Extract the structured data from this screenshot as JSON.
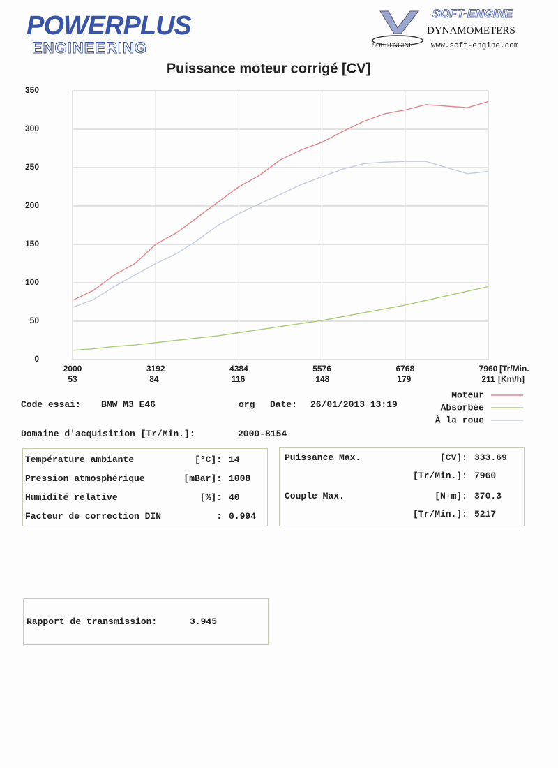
{
  "header": {
    "brand": "POWERPLUS",
    "brand_sub": "ENGINEERING",
    "partner": "SOFT-ENGINE",
    "partner_sub": "DYNAMOMETERS",
    "partner_url": "www.soft-engine.com",
    "partner_badge": "SOFT-ENGINE"
  },
  "chart_data": {
    "type": "line",
    "title": "Puissance moteur corrigé [CV]",
    "x": [
      2000,
      2298,
      2596,
      2894,
      3192,
      3490,
      3788,
      4086,
      4384,
      4682,
      4980,
      5278,
      5576,
      5874,
      6172,
      6470,
      6768,
      7066,
      7364,
      7662,
      7960
    ],
    "series": [
      {
        "name": "Moteur",
        "color": "#e08890",
        "values": [
          77,
          90,
          110,
          125,
          150,
          165,
          185,
          205,
          225,
          240,
          260,
          273,
          283,
          297,
          310,
          320,
          325,
          332,
          330,
          328,
          336
        ]
      },
      {
        "name": "Absorbée",
        "color": "#a8cc78",
        "values": [
          12,
          14,
          17,
          19,
          22,
          25,
          28,
          31,
          35,
          39,
          43,
          47,
          51,
          56,
          61,
          66,
          71,
          77,
          83,
          89,
          95
        ]
      },
      {
        "name": "À la roue",
        "color": "#c4cedc",
        "values": [
          68,
          78,
          95,
          110,
          125,
          138,
          155,
          175,
          190,
          203,
          215,
          228,
          238,
          248,
          255,
          257,
          258,
          258,
          250,
          242,
          245
        ]
      }
    ],
    "xlim": [
      2000,
      7960
    ],
    "xticks": [
      2000,
      3192,
      4384,
      5576,
      6768,
      7960
    ],
    "x_unit": "[Tr/Min.",
    "x2lim": [
      53,
      211
    ],
    "x2ticks": [
      53,
      84,
      116,
      148,
      179,
      211
    ],
    "x2_unit": "[Km/h]",
    "ylim": [
      0,
      350
    ],
    "yticks": [
      0,
      50,
      100,
      150,
      200,
      250,
      300,
      350
    ],
    "grid": true
  },
  "test": {
    "code_label": "Code essai:",
    "code": "BMW M3 E46",
    "code_suffix": "org",
    "date_label": "Date:",
    "date": "26/01/2013 13:19",
    "range_label": "Domaine d'acquisition [Tr/Min.]:",
    "range": "2000-8154"
  },
  "conditions": [
    {
      "label": "Température ambiante",
      "unit": "[°C]:",
      "value": 14
    },
    {
      "label": "Pression atmosphérique",
      "unit": "[mBar]:",
      "value": 1008
    },
    {
      "label": "Humidité relative",
      "unit": "[%]:",
      "value": 40
    },
    {
      "label": "Facteur de correction DIN",
      "unit": ":",
      "value": 0.994
    }
  ],
  "results": [
    {
      "label": "Puissance Max.",
      "unit": "[CV]:",
      "value": 333.69,
      "rpm_unit": "[Tr/Min.]:",
      "rpm": 7960
    },
    {
      "label": "Couple Max.",
      "unit": "[N·m]:",
      "value": 370.3,
      "rpm_unit": "[Tr/Min.]:",
      "rpm": 5217
    }
  ],
  "transmission": {
    "label": "Rapport de transmission:",
    "value": 3.945
  }
}
